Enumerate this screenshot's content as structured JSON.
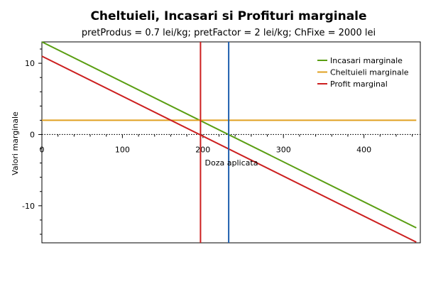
{
  "chart_data": {
    "type": "line",
    "title": "Cheltuieli, Incasari si Profituri marginale",
    "subtitle": "pretProdus = 0.7 lei/kg; pretFactor = 2 lei/kg; ChFixe = 2000 lei",
    "xlabel": "Doza aplicata",
    "ylabel": "Valori marginale",
    "xlim": [
      0,
      470
    ],
    "ylim": [
      -15.2,
      13
    ],
    "x_ticks": [
      0,
      100,
      200,
      300,
      400
    ],
    "y_ticks": [
      -10,
      0,
      10
    ],
    "legend_position": "top-right",
    "series": [
      {
        "name": "Incasari marginale",
        "color": "#5a9e12",
        "x": [
          0,
          465
        ],
        "y": [
          13,
          -13.1
        ]
      },
      {
        "name": "Cheltuieli marginale",
        "color": "#e0a020",
        "x": [
          0,
          465
        ],
        "y": [
          2,
          2
        ]
      },
      {
        "name": "Profit marginal",
        "color": "#cc1f1f",
        "x": [
          0,
          465
        ],
        "y": [
          11,
          -15.1
        ]
      }
    ],
    "vertical_lines": [
      {
        "x": 197,
        "color": "#cc1f1f"
      },
      {
        "x": 232,
        "color": "#1f5fae"
      }
    ],
    "zero_line": {
      "y": 0,
      "style": "dotted"
    }
  }
}
